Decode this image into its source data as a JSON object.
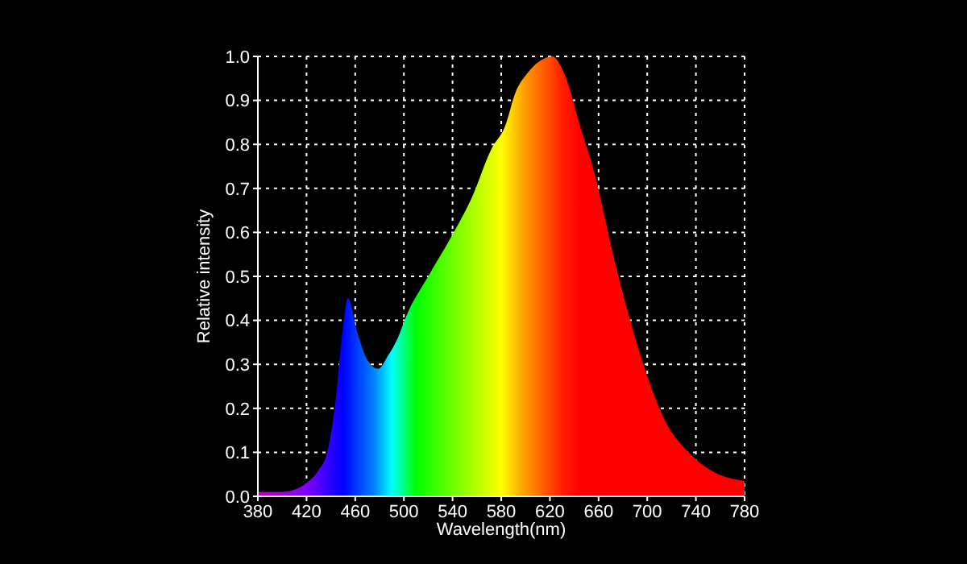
{
  "chart_data": {
    "type": "area",
    "xlabel": "Wavelength(nm)",
    "ylabel": "Relative intensity",
    "x": [
      380,
      400,
      410,
      420,
      430,
      437,
      444,
      449,
      454,
      462,
      470,
      479,
      487,
      495,
      502,
      520,
      539,
      556,
      572,
      583,
      592,
      601,
      612,
      622,
      632,
      645,
      658,
      671,
      685,
      698,
      715,
      734,
      755,
      780
    ],
    "values": [
      0.01,
      0.01,
      0.015,
      0.03,
      0.06,
      0.1,
      0.22,
      0.36,
      0.45,
      0.37,
      0.31,
      0.29,
      0.32,
      0.36,
      0.41,
      0.5,
      0.59,
      0.68,
      0.79,
      0.84,
      0.92,
      0.96,
      0.99,
      1.0,
      0.96,
      0.84,
      0.72,
      0.56,
      0.41,
      0.29,
      0.17,
      0.1,
      0.055,
      0.035
    ],
    "xlim": [
      380,
      780
    ],
    "xticks": [
      380,
      420,
      460,
      500,
      540,
      580,
      620,
      660,
      700,
      740,
      780
    ],
    "ylim": [
      0,
      1
    ],
    "yticks": [
      {
        "value": 0,
        "label": "0.0"
      },
      0.1,
      0.2,
      0.3,
      0.4,
      0.5,
      0.6,
      0.7,
      0.8,
      0.9,
      {
        "value": 1,
        "label": "1.0"
      }
    ],
    "grid": true,
    "legend": false
  }
}
